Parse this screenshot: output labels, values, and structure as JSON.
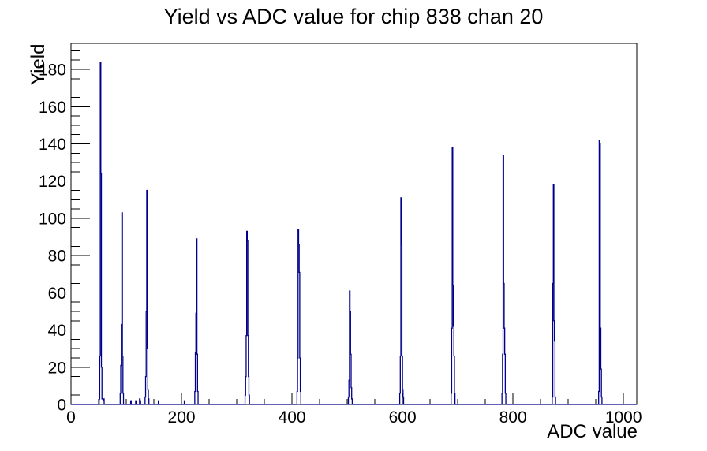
{
  "page": {
    "background_color": "#ffffff",
    "text_color": "#000000"
  },
  "chart_data": {
    "type": "bar",
    "subtype": "histogram-outline",
    "title": "Yield vs ADC value for chip 838 chan 20",
    "xlabel": "ADC value",
    "ylabel": "Yield",
    "xlim": [
      0,
      1024
    ],
    "ylim": [
      0,
      194
    ],
    "grid": false,
    "legend": "none",
    "line_color": "#00008b",
    "frame_color": "#000000",
    "x_major_ticks": [
      0,
      200,
      400,
      600,
      800,
      1000
    ],
    "x_minor_step": 50,
    "y_major_ticks": [
      0,
      20,
      40,
      60,
      80,
      100,
      120,
      140,
      160,
      180
    ],
    "y_minor_step": 5,
    "peaks": [
      {
        "adc": 53,
        "yield": 184
      },
      {
        "adc": 92,
        "yield": 103
      },
      {
        "adc": 137,
        "yield": 115
      },
      {
        "adc": 227,
        "yield": 89
      },
      {
        "adc": 318,
        "yield": 93
      },
      {
        "adc": 411,
        "yield": 94
      },
      {
        "adc": 504,
        "yield": 61
      },
      {
        "adc": 597,
        "yield": 111
      },
      {
        "adc": 690,
        "yield": 138
      },
      {
        "adc": 782,
        "yield": 134
      },
      {
        "adc": 873,
        "yield": 118
      },
      {
        "adc": 956,
        "yield": 142
      }
    ],
    "bin_clusters": [
      {
        "start": 51,
        "values": [
          3,
          26,
          184,
          124,
          20,
          3
        ]
      },
      {
        "start": 57,
        "values": [
          3,
          2,
          3
        ]
      },
      {
        "start": 89,
        "values": [
          6,
          21,
          43,
          103,
          26,
          6
        ]
      },
      {
        "start": 108,
        "values": [
          2
        ]
      },
      {
        "start": 117,
        "values": [
          2
        ]
      },
      {
        "start": 124,
        "values": [
          3,
          2
        ]
      },
      {
        "start": 134,
        "values": [
          4,
          15,
          50,
          115,
          30,
          8,
          3
        ]
      },
      {
        "start": 158,
        "values": [
          2
        ]
      },
      {
        "start": 205,
        "values": [
          2
        ]
      },
      {
        "start": 224,
        "values": [
          7,
          28,
          49,
          89,
          27,
          7
        ]
      },
      {
        "start": 315,
        "values": [
          5,
          15,
          37,
          93,
          88,
          37,
          15,
          5
        ]
      },
      {
        "start": 409,
        "values": [
          7,
          25,
          94,
          86,
          71,
          25,
          7
        ]
      },
      {
        "start": 502,
        "values": [
          4,
          13,
          61,
          50,
          27,
          9,
          3
        ]
      },
      {
        "start": 595,
        "values": [
          6,
          26,
          111,
          86,
          26,
          8,
          4
        ]
      },
      {
        "start": 688,
        "values": [
          6,
          41,
          138,
          64,
          42,
          26,
          6
        ]
      },
      {
        "start": 780,
        "values": [
          6,
          27,
          134,
          65,
          41,
          27,
          6
        ]
      },
      {
        "start": 871,
        "values": [
          4,
          65,
          118,
          45,
          34,
          4
        ]
      },
      {
        "start": 955,
        "values": [
          7,
          142,
          140,
          41,
          19,
          4
        ]
      }
    ]
  }
}
